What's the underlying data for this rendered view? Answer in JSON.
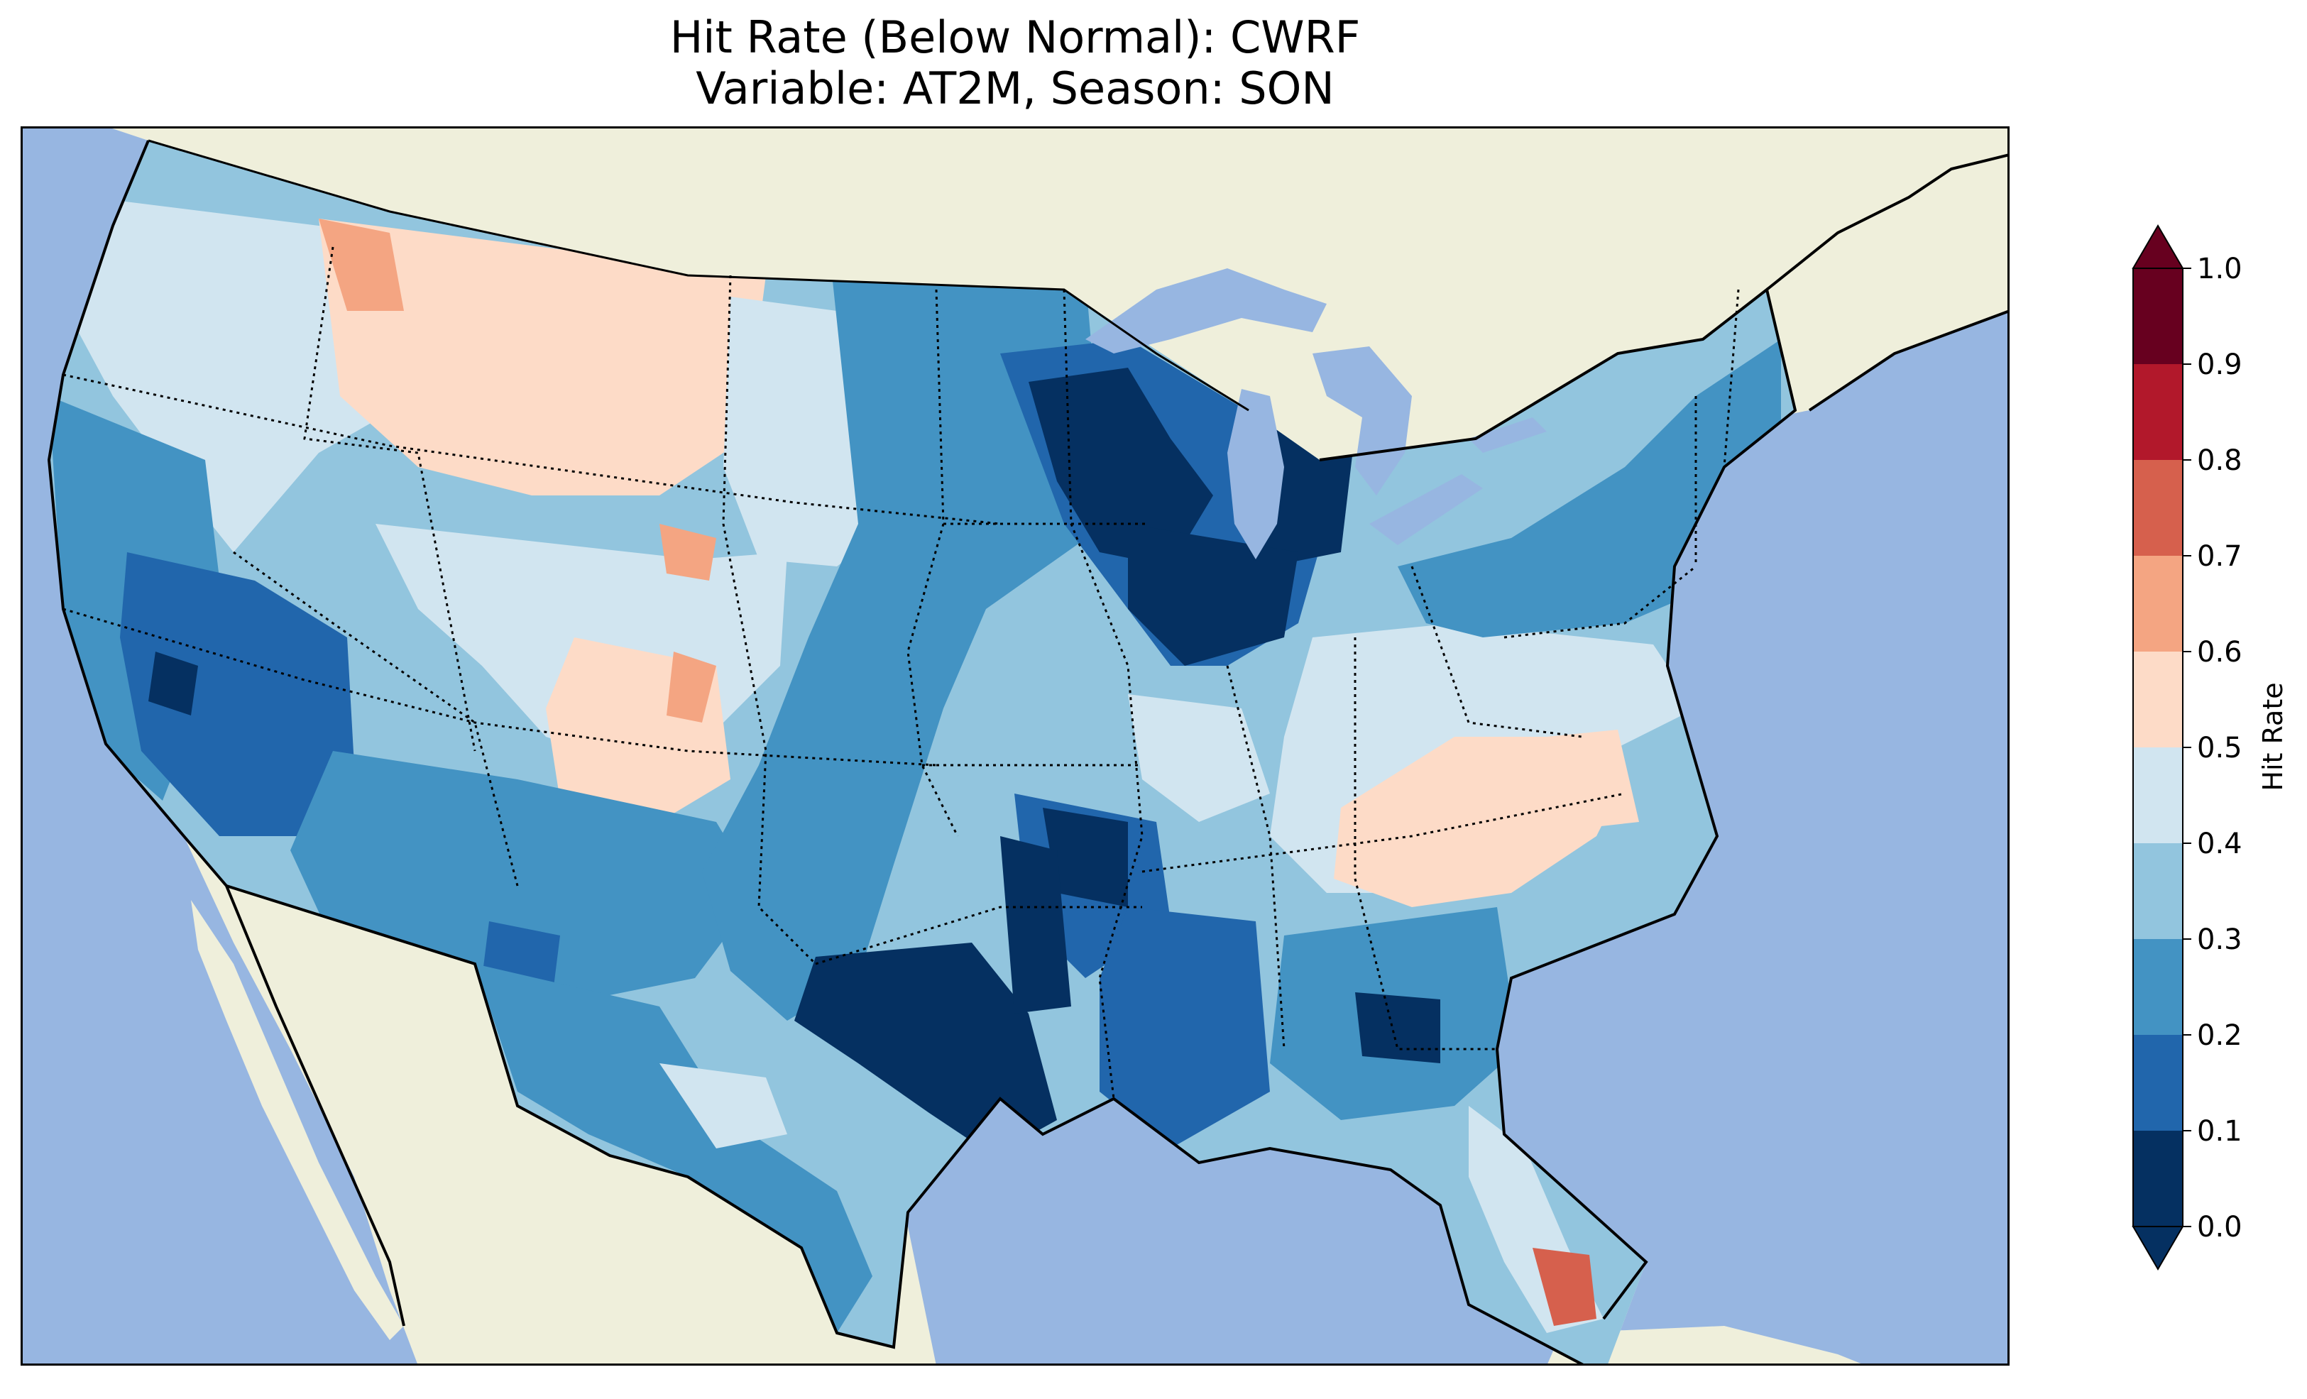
{
  "title": {
    "line1": "Hit Rate (Below Normal): CWRF",
    "line2": "Variable: AT2M, Season: SON"
  },
  "map": {
    "region": "Contiguous United States",
    "ocean_color": "#97b6e1",
    "land_color": "#efefdb",
    "lake_color": "#97b6e1",
    "coastline_color": "#000000",
    "state_border_style": "dotted"
  },
  "colorbar": {
    "label": "Hit Rate",
    "ticks": [
      "0.0",
      "0.1",
      "0.2",
      "0.3",
      "0.4",
      "0.5",
      "0.6",
      "0.7",
      "0.8",
      "0.9",
      "1.0"
    ],
    "colors": [
      "#053061",
      "#2166ac",
      "#4393c3",
      "#92c5de",
      "#d1e5f0",
      "#fddbc7",
      "#f4a582",
      "#d6604d",
      "#b2182b",
      "#67001f"
    ],
    "extend": "both"
  },
  "chart_data": {
    "type": "heatmap",
    "title": "Hit Rate (Below Normal): CWRF\nVariable: AT2M, Season: SON",
    "colorbar_label": "Hit Rate",
    "levels": [
      0.0,
      0.1,
      0.2,
      0.3,
      0.4,
      0.5,
      0.6,
      0.7,
      0.8,
      0.9,
      1.0
    ],
    "regional_hit_rate_bins": [
      {
        "region": "Pacific Northwest coast",
        "bin": "0.3-0.4"
      },
      {
        "region": "Idaho / Montana",
        "bin": "0.5-0.6"
      },
      {
        "region": "Nevada",
        "bin": "0.1-0.2"
      },
      {
        "region": "California coast",
        "bin": "0.2-0.3"
      },
      {
        "region": "Colorado",
        "bin": "0.5-0.6"
      },
      {
        "region": "Wyoming",
        "bin": "0.4-0.5"
      },
      {
        "region": "Arizona / New Mexico",
        "bin": "0.2-0.3"
      },
      {
        "region": "North / South Dakota",
        "bin": "0.4-0.5"
      },
      {
        "region": "Minnesota / Iowa",
        "bin": "0.2-0.3"
      },
      {
        "region": "Wisconsin / Michigan",
        "bin": "0.0-0.1"
      },
      {
        "region": "Missouri",
        "bin": "0.0-0.1"
      },
      {
        "region": "Oklahoma / north Texas",
        "bin": "0.0-0.1"
      },
      {
        "region": "Texas Gulf coast",
        "bin": "0.2-0.3"
      },
      {
        "region": "Kentucky / Tennessee",
        "bin": "0.5-0.6"
      },
      {
        "region": "Virginia / North Carolina",
        "bin": "0.5-0.6"
      },
      {
        "region": "Georgia",
        "bin": "0.1-0.2"
      },
      {
        "region": "New York / New England",
        "bin": "0.2-0.3"
      },
      {
        "region": "South Florida",
        "bin": "0.6-0.7"
      },
      {
        "region": "Florida Keys",
        "bin": "0.7-0.8"
      }
    ]
  }
}
